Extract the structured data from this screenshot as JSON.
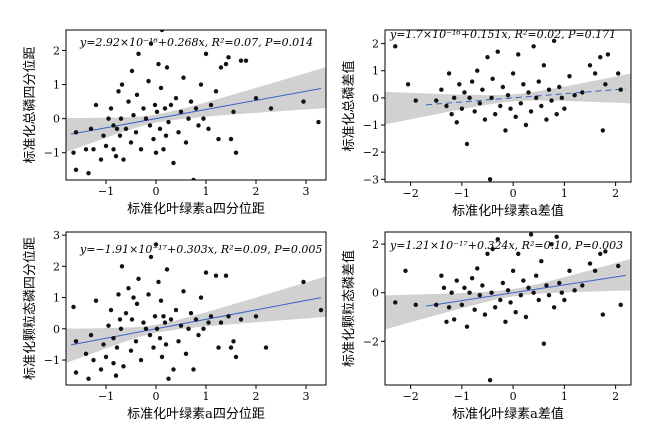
{
  "chart_data": [
    {
      "type": "scatter",
      "annotation": "y=2.92×10⁻¹⁶+0.268x, R²=0.07, P=0.014",
      "xlabel": "标准化叶绿素a四分位距",
      "ylabel": "标准化总磷四分位距",
      "xlim": [
        -1.8,
        3.4
      ],
      "ylim": [
        -1.8,
        2.6
      ],
      "xticks": [
        -1,
        0,
        1,
        2,
        3
      ],
      "yticks": [
        -1,
        0,
        1,
        2
      ],
      "fit": {
        "intercept": 0,
        "slope": 0.268,
        "style": "solid",
        "color": "#3a63c8"
      },
      "band": {
        "left_half_width": 0.5,
        "center_half_width": 0.12,
        "right_half_width": 0.6
      },
      "points": [
        [
          -1.65,
          -1.0
        ],
        [
          -1.6,
          -1.5
        ],
        [
          -1.6,
          -0.4
        ],
        [
          -1.4,
          -0.9
        ],
        [
          -1.35,
          -1.6
        ],
        [
          -1.3,
          -0.3
        ],
        [
          -1.25,
          -0.9
        ],
        [
          -1.2,
          0.4
        ],
        [
          -1.1,
          -1.2
        ],
        [
          -1.05,
          -0.5
        ],
        [
          -1.0,
          -0.8
        ],
        [
          -0.95,
          0.0
        ],
        [
          -0.9,
          0.3
        ],
        [
          -0.85,
          -0.2
        ],
        [
          -0.85,
          -0.9
        ],
        [
          -0.8,
          -1.1
        ],
        [
          -0.78,
          -0.3
        ],
        [
          -0.75,
          0.8
        ],
        [
          -0.72,
          -0.5
        ],
        [
          -0.7,
          0.0
        ],
        [
          -0.68,
          1.0
        ],
        [
          -0.65,
          -1.2
        ],
        [
          -0.6,
          -0.3
        ],
        [
          -0.55,
          0.5
        ],
        [
          -0.5,
          -0.7
        ],
        [
          -0.48,
          1.4
        ],
        [
          -0.45,
          0.1
        ],
        [
          -0.4,
          -0.4
        ],
        [
          -0.38,
          0.7
        ],
        [
          -0.35,
          1.9
        ],
        [
          -0.3,
          -0.9
        ],
        [
          -0.25,
          0.3
        ],
        [
          -0.2,
          0.0
        ],
        [
          -0.15,
          1.1
        ],
        [
          -0.12,
          -0.2
        ],
        [
          -0.1,
          2.2
        ],
        [
          -0.05,
          -0.6
        ],
        [
          -0.02,
          0.4
        ],
        [
          0.0,
          -1.0
        ],
        [
          0.02,
          0.2
        ],
        [
          0.05,
          1.6
        ],
        [
          0.08,
          -0.3
        ],
        [
          0.1,
          0.9
        ],
        [
          0.12,
          2.6
        ],
        [
          0.15,
          -0.9
        ],
        [
          0.18,
          0.3
        ],
        [
          0.2,
          -0.5
        ],
        [
          0.22,
          1.5
        ],
        [
          0.25,
          -0.1
        ],
        [
          0.3,
          0.4
        ],
        [
          0.35,
          -1.3
        ],
        [
          0.4,
          0.6
        ],
        [
          0.45,
          -0.4
        ],
        [
          0.5,
          0.2
        ],
        [
          0.55,
          1.2
        ],
        [
          0.6,
          -0.7
        ],
        [
          0.65,
          0.0
        ],
        [
          0.7,
          0.5
        ],
        [
          0.75,
          -1.8
        ],
        [
          0.8,
          0.3
        ],
        [
          0.85,
          -0.2
        ],
        [
          0.9,
          1.0
        ],
        [
          0.95,
          0.0
        ],
        [
          1.0,
          1.9
        ],
        [
          1.05,
          -0.3
        ],
        [
          1.1,
          0.4
        ],
        [
          1.2,
          0.8
        ],
        [
          1.25,
          -0.6
        ],
        [
          1.3,
          1.5
        ],
        [
          1.4,
          1.6
        ],
        [
          1.45,
          1.8
        ],
        [
          1.5,
          -0.6
        ],
        [
          1.55,
          0.2
        ],
        [
          1.6,
          -1.0
        ],
        [
          1.7,
          1.7
        ],
        [
          1.8,
          1.7
        ],
        [
          2.0,
          0.6
        ],
        [
          2.3,
          0.3
        ],
        [
          2.95,
          0.5
        ],
        [
          3.25,
          -0.1
        ]
      ]
    },
    {
      "type": "scatter",
      "annotation": "y=1.7×10⁻¹⁶+0.151x, R²=0.02, P=0.171",
      "xlabel": "标准化叶绿素a差值",
      "ylabel": "标准化总磷差值",
      "xlim": [
        -2.5,
        2.3
      ],
      "ylim": [
        -3.1,
        2.5
      ],
      "xticks": [
        -2,
        -1,
        0,
        1,
        2
      ],
      "yticks": [
        -3,
        -2,
        -1,
        0,
        1,
        2
      ],
      "fit": {
        "intercept": 0,
        "slope": 0.151,
        "style": "dashed",
        "color": "#3a63c8"
      },
      "band": {
        "left_half_width": 0.6,
        "center_half_width": 0.13,
        "right_half_width": 0.55
      },
      "points": [
        [
          -2.3,
          1.9
        ],
        [
          -2.05,
          0.5
        ],
        [
          -1.9,
          -0.1
        ],
        [
          -1.5,
          -0.1
        ],
        [
          -1.4,
          0.3
        ],
        [
          -1.3,
          -0.3
        ],
        [
          -1.25,
          0.9
        ],
        [
          -1.2,
          -0.6
        ],
        [
          -1.15,
          0.0
        ],
        [
          -1.1,
          -0.9
        ],
        [
          -1.05,
          0.5
        ],
        [
          -1.0,
          -0.4
        ],
        [
          -0.95,
          0.2
        ],
        [
          -0.9,
          -1.7
        ],
        [
          -0.85,
          0.0
        ],
        [
          -0.8,
          0.6
        ],
        [
          -0.75,
          -0.5
        ],
        [
          -0.7,
          1.0
        ],
        [
          -0.65,
          -0.2
        ],
        [
          -0.6,
          0.3
        ],
        [
          -0.55,
          -0.8
        ],
        [
          -0.5,
          1.5
        ],
        [
          -0.45,
          -3.0
        ],
        [
          -0.42,
          0.0
        ],
        [
          -0.4,
          0.7
        ],
        [
          -0.35,
          -0.6
        ],
        [
          -0.3,
          1.7
        ],
        [
          -0.25,
          -0.3
        ],
        [
          -0.2,
          0.4
        ],
        [
          -0.15,
          -1.2
        ],
        [
          -0.1,
          0.1
        ],
        [
          -0.05,
          -0.4
        ],
        [
          0.0,
          0.9
        ],
        [
          0.05,
          -0.7
        ],
        [
          0.1,
          1.6
        ],
        [
          0.15,
          -0.2
        ],
        [
          0.2,
          0.5
        ],
        [
          0.25,
          -1.0
        ],
        [
          0.3,
          0.2
        ],
        [
          0.35,
          -0.5
        ],
        [
          0.4,
          1.9
        ],
        [
          0.45,
          0.0
        ],
        [
          0.5,
          0.6
        ],
        [
          0.55,
          -0.3
        ],
        [
          0.6,
          1.2
        ],
        [
          0.65,
          -0.8
        ],
        [
          0.7,
          0.3
        ],
        [
          0.75,
          -0.1
        ],
        [
          0.8,
          2.1
        ],
        [
          0.85,
          -0.6
        ],
        [
          0.9,
          0.4
        ],
        [
          0.95,
          0.0
        ],
        [
          1.0,
          -0.4
        ],
        [
          1.1,
          0.8
        ],
        [
          1.2,
          0.1
        ],
        [
          1.35,
          0.2
        ],
        [
          1.5,
          1.2
        ],
        [
          1.6,
          0.9
        ],
        [
          1.7,
          1.5
        ],
        [
          1.75,
          -1.2
        ],
        [
          1.8,
          0.5
        ],
        [
          1.85,
          1.6
        ],
        [
          2.05,
          0.9
        ],
        [
          2.1,
          0.3
        ]
      ]
    },
    {
      "type": "scatter",
      "annotation": "y=−1.91×10⁻¹⁷+0.303x, R²=0.09, P=0.005",
      "xlabel": "标准化叶绿素a四分位距",
      "ylabel": "标准化颗粒态磷四分位距",
      "xlim": [
        -1.8,
        3.4
      ],
      "ylim": [
        -1.8,
        3.1
      ],
      "xticks": [
        -1,
        0,
        1,
        2,
        3
      ],
      "yticks": [
        -1,
        0,
        1,
        2,
        3
      ],
      "fit": {
        "intercept": 0,
        "slope": 0.303,
        "style": "solid",
        "color": "#3a63c8"
      },
      "band": {
        "left_half_width": 0.55,
        "center_half_width": 0.13,
        "right_half_width": 0.65
      },
      "points": [
        [
          -1.65,
          0.7
        ],
        [
          -1.6,
          -1.4
        ],
        [
          -1.6,
          -0.4
        ],
        [
          -1.4,
          -0.8
        ],
        [
          -1.35,
          -1.6
        ],
        [
          -1.3,
          -0.2
        ],
        [
          -1.25,
          -1.0
        ],
        [
          -1.2,
          0.9
        ],
        [
          -1.1,
          -1.3
        ],
        [
          -1.05,
          -0.5
        ],
        [
          -1.0,
          -0.9
        ],
        [
          -0.95,
          0.1
        ],
        [
          -0.9,
          0.6
        ],
        [
          -0.85,
          -0.3
        ],
        [
          -0.85,
          -1.1
        ],
        [
          -0.8,
          -1.5
        ],
        [
          -0.78,
          -0.6
        ],
        [
          -0.75,
          1.1
        ],
        [
          -0.72,
          0.3
        ],
        [
          -0.7,
          0.0
        ],
        [
          -0.68,
          2.0
        ],
        [
          -0.65,
          -1.2
        ],
        [
          -0.6,
          0.5
        ],
        [
          -0.55,
          1.3
        ],
        [
          -0.5,
          -0.7
        ],
        [
          -0.48,
          0.3
        ],
        [
          -0.45,
          1.0
        ],
        [
          -0.4,
          -0.4
        ],
        [
          -0.38,
          0.8
        ],
        [
          -0.35,
          1.6
        ],
        [
          -0.3,
          -1.0
        ],
        [
          -0.25,
          0.2
        ],
        [
          -0.2,
          0.0
        ],
        [
          -0.15,
          1.1
        ],
        [
          -0.12,
          -0.2
        ],
        [
          -0.1,
          2.3
        ],
        [
          -0.05,
          -0.6
        ],
        [
          -0.02,
          0.4
        ],
        [
          0.0,
          2.7
        ],
        [
          0.02,
          0.0
        ],
        [
          0.05,
          1.5
        ],
        [
          0.08,
          -0.3
        ],
        [
          0.1,
          0.9
        ],
        [
          0.12,
          -0.9
        ],
        [
          0.15,
          0.4
        ],
        [
          0.18,
          0.2
        ],
        [
          0.2,
          -0.5
        ],
        [
          0.22,
          1.9
        ],
        [
          0.25,
          -1.6
        ],
        [
          0.3,
          0.3
        ],
        [
          0.35,
          -1.3
        ],
        [
          0.4,
          0.6
        ],
        [
          0.45,
          -0.4
        ],
        [
          0.5,
          0.1
        ],
        [
          0.55,
          1.2
        ],
        [
          0.6,
          -0.8
        ],
        [
          0.65,
          0.0
        ],
        [
          0.7,
          0.5
        ],
        [
          0.75,
          -1.3
        ],
        [
          0.8,
          0.3
        ],
        [
          0.85,
          -0.2
        ],
        [
          0.9,
          1.0
        ],
        [
          0.95,
          0.0
        ],
        [
          1.0,
          1.8
        ],
        [
          1.05,
          0.2
        ],
        [
          1.1,
          0.4
        ],
        [
          1.2,
          1.7
        ],
        [
          1.25,
          -0.6
        ],
        [
          1.3,
          0.2
        ],
        [
          1.4,
          1.7
        ],
        [
          1.45,
          0.4
        ],
        [
          1.5,
          -0.6
        ],
        [
          1.55,
          -0.4
        ],
        [
          1.6,
          -0.9
        ],
        [
          1.7,
          0.3
        ],
        [
          2.0,
          0.4
        ],
        [
          2.2,
          -0.6
        ],
        [
          2.95,
          1.5
        ],
        [
          3.3,
          0.6
        ]
      ]
    },
    {
      "type": "scatter",
      "annotation": "y=1.21×10⁻¹⁷+0.324x, R²=0.10, P=0.003",
      "xlabel": "标准化叶绿素a差值",
      "ylabel": "标准化颗粒态磷差值",
      "xlim": [
        -2.5,
        2.3
      ],
      "ylim": [
        -3.8,
        2.5
      ],
      "xticks": [
        -2,
        -1,
        0,
        1,
        2
      ],
      "yticks": [
        -2,
        0,
        2
      ],
      "fit": {
        "intercept": 0,
        "slope": 0.324,
        "style": "solid",
        "color": "#3a63c8"
      },
      "band": {
        "left_half_width": 0.7,
        "center_half_width": 0.15,
        "right_half_width": 0.65
      },
      "points": [
        [
          -2.3,
          -0.4
        ],
        [
          -2.1,
          0.9
        ],
        [
          -1.9,
          -0.5
        ],
        [
          -1.5,
          -0.5
        ],
        [
          -1.4,
          0.7
        ],
        [
          -1.35,
          0.2
        ],
        [
          -1.3,
          -1.2
        ],
        [
          -1.25,
          -0.6
        ],
        [
          -1.2,
          0.0
        ],
        [
          -1.15,
          -1.1
        ],
        [
          -1.1,
          0.5
        ],
        [
          -1.0,
          -0.5
        ],
        [
          -0.95,
          0.2
        ],
        [
          -0.9,
          -1.4
        ],
        [
          -0.85,
          0.0
        ],
        [
          -0.8,
          0.6
        ],
        [
          -0.75,
          -0.7
        ],
        [
          -0.7,
          1.0
        ],
        [
          -0.65,
          -0.1
        ],
        [
          -0.6,
          0.3
        ],
        [
          -0.55,
          -0.9
        ],
        [
          -0.5,
          1.6
        ],
        [
          -0.45,
          -3.6
        ],
        [
          -0.42,
          0.0
        ],
        [
          -0.4,
          1.8
        ],
        [
          -0.35,
          -0.6
        ],
        [
          -0.3,
          2.2
        ],
        [
          -0.25,
          -0.3
        ],
        [
          -0.2,
          0.4
        ],
        [
          -0.15,
          -1.2
        ],
        [
          -0.1,
          0.1
        ],
        [
          -0.05,
          -0.4
        ],
        [
          0.0,
          0.9
        ],
        [
          0.05,
          -0.8
        ],
        [
          0.1,
          1.6
        ],
        [
          0.15,
          -0.1
        ],
        [
          0.2,
          0.5
        ],
        [
          0.25,
          -1.0
        ],
        [
          0.3,
          0.2
        ],
        [
          0.35,
          2.4
        ],
        [
          0.4,
          0.0
        ],
        [
          0.45,
          0.7
        ],
        [
          0.5,
          -0.3
        ],
        [
          0.55,
          1.3
        ],
        [
          0.6,
          -2.1
        ],
        [
          0.65,
          0.3
        ],
        [
          0.7,
          -0.1
        ],
        [
          0.75,
          2.0
        ],
        [
          0.8,
          -0.6
        ],
        [
          0.85,
          2.3
        ],
        [
          0.9,
          0.4
        ],
        [
          0.95,
          0.0
        ],
        [
          1.0,
          -0.3
        ],
        [
          1.1,
          0.9
        ],
        [
          1.2,
          0.1
        ],
        [
          1.35,
          0.3
        ],
        [
          1.5,
          1.2
        ],
        [
          1.6,
          0.9
        ],
        [
          1.7,
          1.6
        ],
        [
          1.75,
          -0.9
        ],
        [
          1.8,
          1.7
        ],
        [
          2.05,
          1.1
        ],
        [
          2.1,
          -0.5
        ]
      ]
    }
  ]
}
